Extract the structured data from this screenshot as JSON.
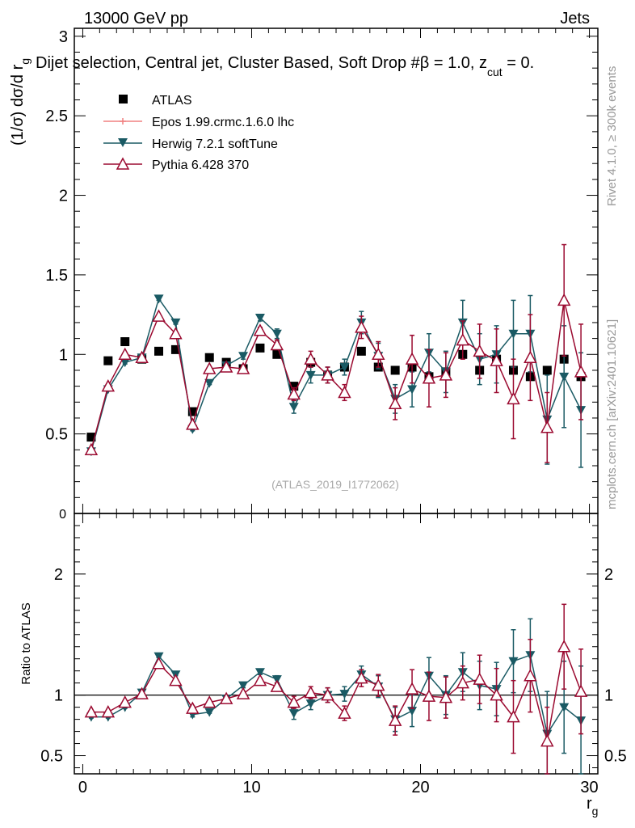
{
  "header": {
    "energy": "13000 GeV pp",
    "process": "Jets",
    "title_main": "Dijet selection, Central jet, Cluster Based, Soft Drop #",
    "title_beta": "β = 1.0, z",
    "title_sub": "cut",
    "title_end": " = 0.",
    "analysis_id": "(ATLAS_2019_I1772062)"
  },
  "side_labels": {
    "rivet": "Rivet 4.1.0, ≥ 300k events",
    "mcplots": "mcplots.cern.ch [arXiv:2401.10621]"
  },
  "colors": {
    "atlas": "#000000",
    "epos": "#f08080",
    "herwig": "#1a5a64",
    "pythia": "#9b0a30"
  },
  "chart_data": [
    {
      "type": "scatter",
      "panel": "main",
      "ylabel_main": "(1/σ) dσ/d r",
      "ylabel_sub": "g",
      "xlim": [
        -0.5,
        30.5
      ],
      "ylim": [
        0,
        3.05
      ],
      "yticks": [
        0.5,
        1,
        1.5,
        2,
        2.5,
        3
      ],
      "ytick_labels": [
        "0.5",
        "1",
        "1.5",
        "2",
        "2.5",
        "3"
      ],
      "y_zero_label": "0",
      "legend_position": "top-left",
      "x": [
        0.5,
        1.5,
        2.5,
        3.5,
        4.5,
        5.5,
        6.5,
        7.5,
        8.5,
        9.5,
        10.5,
        11.5,
        12.5,
        13.5,
        14.5,
        15.5,
        16.5,
        17.5,
        18.5,
        19.5,
        20.5,
        21.5,
        22.5,
        23.5,
        24.5,
        25.5,
        26.5,
        27.5,
        28.5,
        29.5
      ],
      "series": [
        {
          "name": "ATLAS",
          "marker": "square",
          "values": [
            0.48,
            0.96,
            1.08,
            0.97,
            1.02,
            1.03,
            0.64,
            0.98,
            0.95,
            0.91,
            1.04,
            1.0,
            0.8,
            0.95,
            0.87,
            0.92,
            1.02,
            0.92,
            0.9,
            0.92,
            0.86,
            0.89,
            1.0,
            0.9,
            0.97,
            0.9,
            0.86,
            0.9,
            0.97,
            0.86
          ]
        },
        {
          "name": "Epos 1.99.crmc.1.6.0 lhc",
          "marker": "cross",
          "values": []
        },
        {
          "name": "Herwig 7.2.1 softTune",
          "marker": "triangle-down",
          "values": [
            0.39,
            0.78,
            0.95,
            0.98,
            1.35,
            1.2,
            0.53,
            0.82,
            0.93,
            0.99,
            1.23,
            1.13,
            0.67,
            0.87,
            0.87,
            0.92,
            1.2,
            0.99,
            0.72,
            0.78,
            1.01,
            0.89,
            1.2,
            0.97,
            1.0,
            1.13,
            1.13,
            0.59,
            0.86,
            0.65
          ],
          "errors": [
            0.005,
            0.01,
            0.01,
            0.01,
            0.01,
            0.01,
            0.01,
            0.01,
            0.02,
            0.02,
            0.02,
            0.03,
            0.04,
            0.05,
            0.05,
            0.05,
            0.07,
            0.08,
            0.09,
            0.11,
            0.12,
            0.13,
            0.14,
            0.16,
            0.18,
            0.21,
            0.24,
            0.28,
            0.32,
            0.36
          ]
        },
        {
          "name": "Pythia 6.428 370",
          "marker": "triangle-up-open",
          "values": [
            0.4,
            0.8,
            1.0,
            0.98,
            1.24,
            1.13,
            0.56,
            0.91,
            0.92,
            0.91,
            1.15,
            1.06,
            0.75,
            0.97,
            0.87,
            0.76,
            1.17,
            1.0,
            0.69,
            0.97,
            0.85,
            0.87,
            1.09,
            1.02,
            0.96,
            0.72,
            0.98,
            0.54,
            1.34,
            0.89
          ],
          "errors": [
            0.005,
            0.01,
            0.01,
            0.01,
            0.01,
            0.01,
            0.01,
            0.01,
            0.02,
            0.02,
            0.02,
            0.03,
            0.04,
            0.05,
            0.05,
            0.05,
            0.07,
            0.08,
            0.1,
            0.15,
            0.18,
            0.14,
            0.12,
            0.17,
            0.2,
            0.25,
            0.27,
            0.22,
            0.35,
            0.3
          ]
        }
      ]
    },
    {
      "type": "scatter",
      "panel": "ratio",
      "ylabel": "Ratio to ATLAS",
      "xlabel_main": "r",
      "xlabel_sub": "g",
      "xlim": [
        -0.5,
        30.5
      ],
      "ylim": [
        0.35,
        2.5
      ],
      "yticks": [
        0.5,
        1,
        2
      ],
      "ytick_labels": [
        "0.5",
        "1",
        "2"
      ],
      "xticks": [
        0,
        10,
        20,
        30
      ],
      "xtick_labels": [
        "0",
        "10",
        "20",
        "30"
      ],
      "reference_line": 1,
      "x": [
        0.5,
        1.5,
        2.5,
        3.5,
        4.5,
        5.5,
        6.5,
        7.5,
        8.5,
        9.5,
        10.5,
        11.5,
        12.5,
        13.5,
        14.5,
        15.5,
        16.5,
        17.5,
        18.5,
        19.5,
        20.5,
        21.5,
        22.5,
        23.5,
        24.5,
        25.5,
        26.5,
        27.5,
        28.5,
        29.5
      ],
      "series": [
        {
          "name": "Herwig 7.2.1 softTune",
          "values": [
            0.82,
            0.82,
            0.9,
            1.02,
            1.32,
            1.17,
            0.84,
            0.86,
            0.97,
            1.08,
            1.19,
            1.13,
            0.85,
            0.93,
            1.0,
            1.01,
            1.17,
            1.07,
            0.8,
            0.87,
            1.16,
            1.0,
            1.19,
            1.08,
            1.05,
            1.28,
            1.33,
            0.68,
            0.9,
            0.79
          ],
          "errors": [
            0.01,
            0.01,
            0.01,
            0.01,
            0.01,
            0.01,
            0.02,
            0.01,
            0.02,
            0.02,
            0.02,
            0.03,
            0.05,
            0.05,
            0.06,
            0.06,
            0.07,
            0.09,
            0.1,
            0.13,
            0.15,
            0.16,
            0.16,
            0.2,
            0.22,
            0.26,
            0.3,
            0.35,
            0.38,
            0.45
          ]
        },
        {
          "name": "Pythia 6.428 370",
          "values": [
            0.86,
            0.86,
            0.94,
            1.01,
            1.26,
            1.12,
            0.89,
            0.94,
            0.97,
            1.01,
            1.12,
            1.07,
            0.94,
            1.02,
            1.0,
            0.85,
            1.14,
            1.08,
            0.79,
            1.05,
            0.99,
            0.98,
            1.1,
            1.13,
            1.0,
            0.82,
            1.16,
            0.62,
            1.4,
            1.03
          ],
          "errors": [
            0.01,
            0.01,
            0.01,
            0.01,
            0.01,
            0.01,
            0.02,
            0.01,
            0.02,
            0.02,
            0.02,
            0.03,
            0.05,
            0.05,
            0.06,
            0.06,
            0.07,
            0.09,
            0.12,
            0.16,
            0.2,
            0.17,
            0.14,
            0.2,
            0.22,
            0.3,
            0.3,
            0.28,
            0.35,
            0.35
          ]
        }
      ]
    }
  ]
}
